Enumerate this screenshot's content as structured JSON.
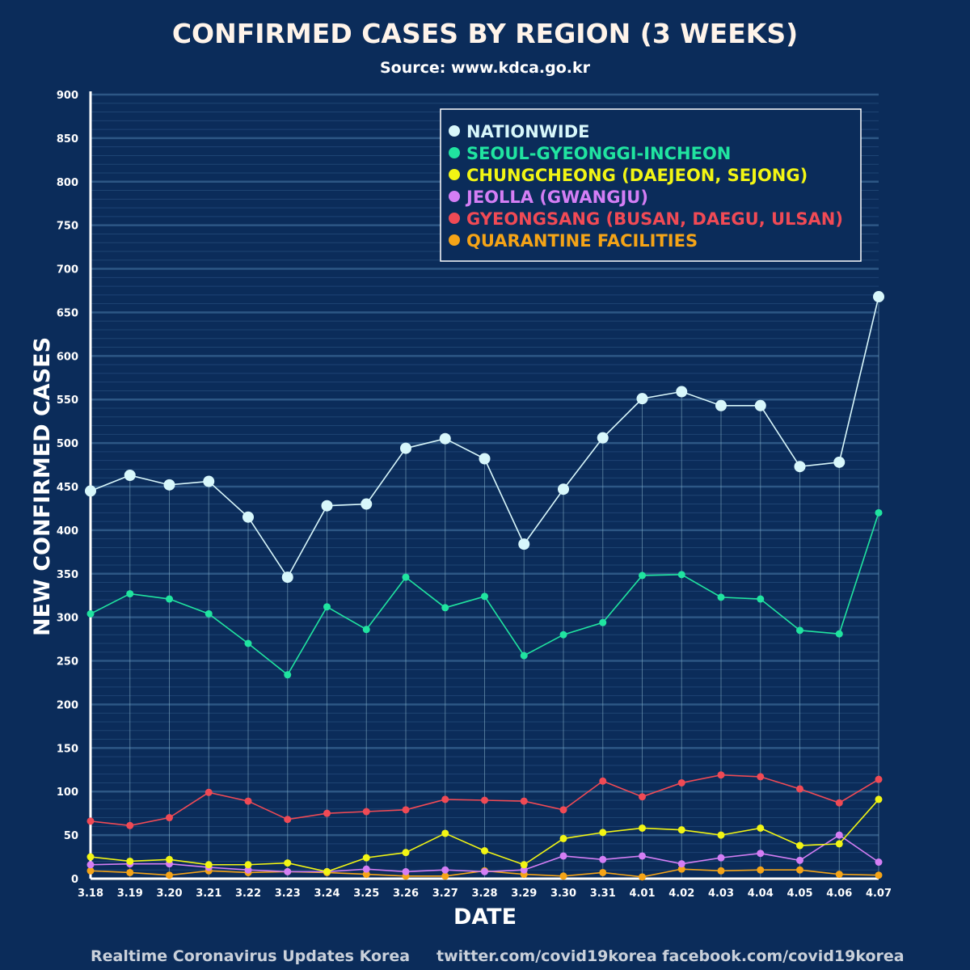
{
  "title": "CONFIRMED CASES BY REGION (3 WEEKS)",
  "subtitle": "Source: www.kdca.go.kr",
  "footer": {
    "left": "Realtime Coronavirus Updates Korea",
    "right": "twitter.com/covid19korea  facebook.com/covid19korea"
  },
  "colors": {
    "background": "#0b2c5a",
    "grid": "#2f5a88",
    "drop_line": "#7fa9bf"
  },
  "chart_data": {
    "type": "line",
    "xlabel": "DATE",
    "ylabel": "NEW CONFIRMED CASES",
    "ylim": [
      0,
      900
    ],
    "yticks": [
      0,
      50,
      100,
      150,
      200,
      250,
      300,
      350,
      400,
      450,
      500,
      550,
      600,
      650,
      700,
      750,
      800,
      850,
      900
    ],
    "grid": true,
    "legend_position": "top-right",
    "categories": [
      "3.18",
      "3.19",
      "3.20",
      "3.21",
      "3.22",
      "3.23",
      "3.24",
      "3.25",
      "3.26",
      "3.27",
      "3.28",
      "3.29",
      "3.30",
      "3.31",
      "4.01",
      "4.02",
      "4.03",
      "4.04",
      "4.05",
      "4.06",
      "4.07"
    ],
    "series": [
      {
        "name": "NATIONWIDE",
        "color": "#d8f7fb",
        "values": [
          445,
          463,
          452,
          456,
          415,
          346,
          428,
          430,
          494,
          505,
          482,
          384,
          447,
          506,
          551,
          559,
          543,
          543,
          473,
          478,
          668
        ]
      },
      {
        "name": "SEOUL-GYEONGGI-INCHEON",
        "color": "#20e4a0",
        "values": [
          304,
          327,
          321,
          304,
          270,
          234,
          312,
          286,
          346,
          311,
          324,
          256,
          280,
          294,
          348,
          349,
          323,
          321,
          285,
          281,
          420
        ]
      },
      {
        "name": "CHUNGCHEONG (DAEJEON, SEJONG)",
        "color": "#f2f514",
        "values": [
          25,
          20,
          22,
          16,
          16,
          18,
          8,
          24,
          30,
          52,
          32,
          16,
          46,
          53,
          58,
          56,
          50,
          58,
          38,
          40,
          91
        ]
      },
      {
        "name": "JEOLLA (GWANGJU)",
        "color": "#d47ef5",
        "values": [
          16,
          17,
          17,
          13,
          10,
          8,
          8,
          11,
          8,
          10,
          8,
          10,
          26,
          22,
          26,
          17,
          24,
          29,
          21,
          50,
          19
        ]
      },
      {
        "name": "GYEONGSANG (BUSAN, DAEGU, ULSAN)",
        "color": "#f04a55",
        "values": [
          66,
          61,
          70,
          99,
          89,
          68,
          75,
          77,
          79,
          91,
          90,
          89,
          79,
          112,
          94,
          110,
          119,
          117,
          103,
          87,
          114
        ]
      },
      {
        "name": "QUARANTINE FACILITIES",
        "color": "#f5a417",
        "values": [
          9,
          7,
          4,
          9,
          7,
          8,
          7,
          5,
          3,
          3,
          9,
          5,
          3,
          7,
          2,
          11,
          9,
          10,
          10,
          5,
          4
        ]
      }
    ]
  }
}
